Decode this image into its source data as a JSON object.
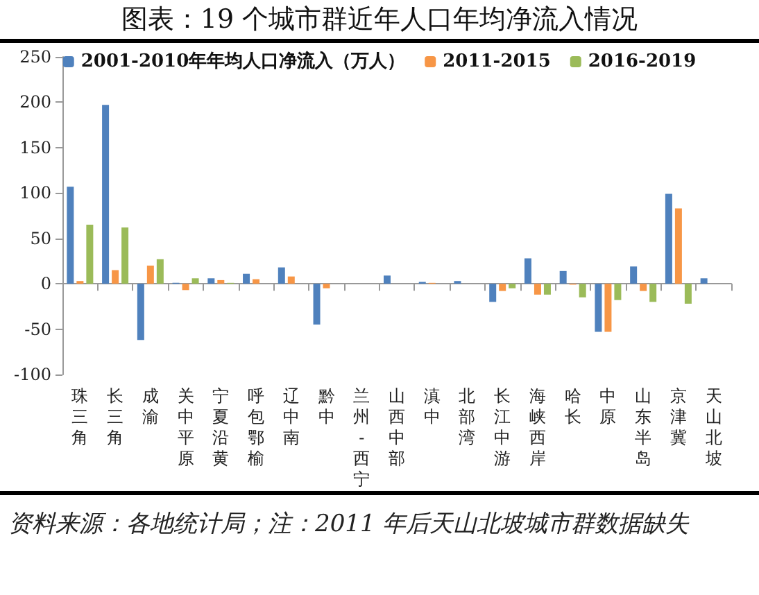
{
  "chart_data": {
    "type": "bar",
    "title": "图表：19 个城市群近年人口年均净流入情况",
    "categories": [
      "珠三角",
      "长三角",
      "成渝",
      "关中平原",
      "宁夏沿黄",
      "呼包鄂榆",
      "辽中南",
      "黔中",
      "兰州-西宁",
      "山西中部",
      "滇中",
      "北部湾",
      "长江中游",
      "海峡西岸",
      "哈长",
      "中原",
      "山东半岛",
      "京津冀",
      "天山北坡"
    ],
    "series": [
      {
        "name": "2001-2010年年均人口净流入（万人）",
        "color": "#4f81bd",
        "values": [
          107,
          197,
          -62,
          1,
          6,
          11,
          18,
          -45,
          0,
          9,
          2,
          3,
          -20,
          28,
          14,
          -53,
          19,
          99,
          6
        ]
      },
      {
        "name": "2011-2015",
        "color": "#f79646",
        "values": [
          3,
          15,
          20,
          -7,
          4,
          5,
          8,
          -5,
          0,
          0,
          1,
          0,
          -8,
          -12,
          -1,
          -53,
          -8,
          83,
          null
        ]
      },
      {
        "name": "2016-2019",
        "color": "#9bbb59",
        "values": [
          65,
          62,
          27,
          6,
          1,
          0,
          0,
          0,
          0,
          0,
          0,
          0,
          -5,
          -12,
          -15,
          -18,
          -20,
          -22,
          null
        ]
      }
    ],
    "ylim": [
      -100,
      250
    ],
    "yticks": [
      -100,
      -50,
      0,
      50,
      100,
      150,
      200,
      250
    ],
    "legend": "top",
    "annotations": [
      "资料来源：各地统计局；注：2011 年后天山北坡城市群数据缺失"
    ]
  }
}
